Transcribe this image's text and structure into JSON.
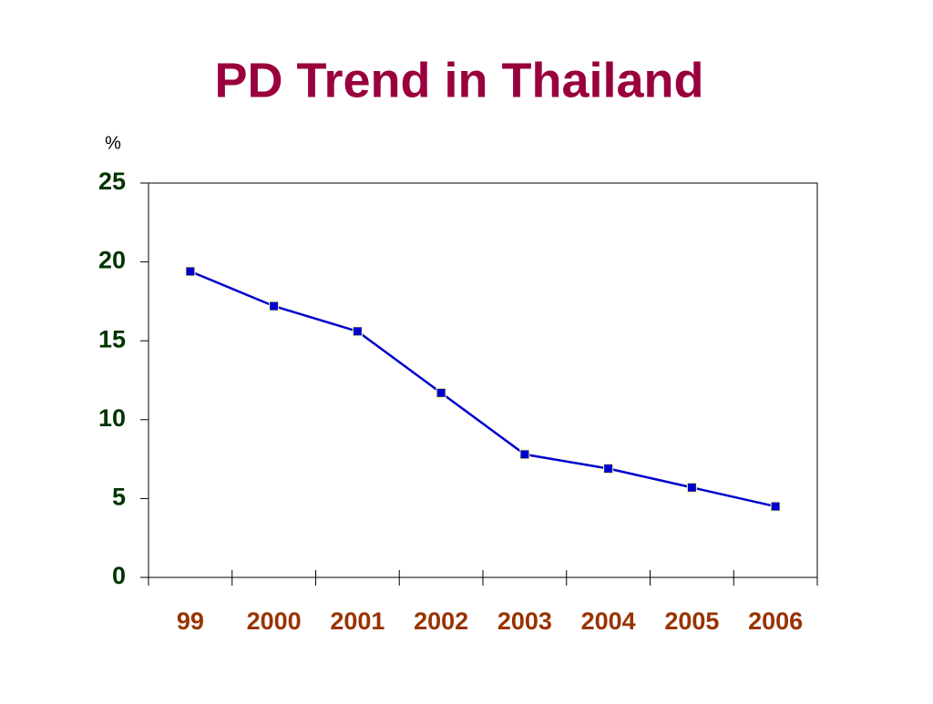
{
  "chart_data": {
    "type": "line",
    "title": "PD Trend in Thailand",
    "y_label": "%",
    "categories": [
      "99",
      "2000",
      "2001",
      "2002",
      "2003",
      "2004",
      "2005",
      "2006"
    ],
    "series": [
      {
        "color": "#0000cc",
        "values": [
          19.4,
          17.2,
          15.6,
          11.7,
          7.8,
          6.9,
          5.7,
          4.5
        ]
      }
    ],
    "ylim": [
      0,
      25
    ],
    "yticks": [
      0,
      5,
      10,
      15,
      20,
      25
    ]
  }
}
